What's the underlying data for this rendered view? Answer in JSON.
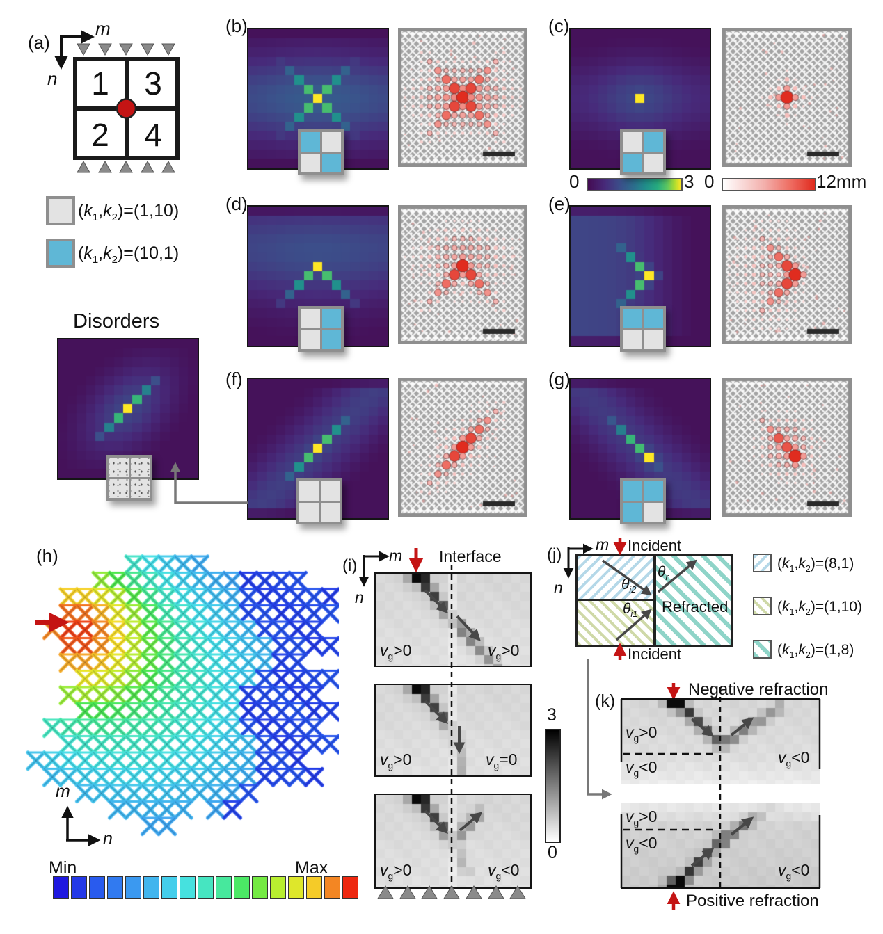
{
  "syms": {
    "open": "(",
    "k": "k",
    "one": "1",
    "two": "2",
    "comma": ",",
    "v": "v",
    "g": "g",
    "theta": "θ"
  },
  "panel_a": {
    "label": "(a)",
    "axis_m": "m",
    "axis_n": "n",
    "quads": [
      "1",
      "3",
      "2",
      "4"
    ]
  },
  "legend_k": {
    "gray_tail": ")=(1,10)",
    "blue_tail": ")=(10,1)"
  },
  "disorders": {
    "title": "Disorders"
  },
  "panel_labels": {
    "a": "(a)",
    "b": "(b)",
    "c": "(c)",
    "d": "(d)",
    "e": "(e)",
    "f": "(f)",
    "g": "(g)",
    "h": "(h)",
    "i": "(i)",
    "j": "(j)",
    "k": "(k)"
  },
  "colorbar_viridis": {
    "min": "0",
    "max": "3"
  },
  "colorbar_disp": {
    "min": "0",
    "max": "12mm"
  },
  "panel_h": {
    "axis_m": "m",
    "axis_n": "n",
    "cbar_min": "Min",
    "cbar_max": "Max"
  },
  "panel_i": {
    "title": "Interface",
    "axis_m": "m",
    "axis_n": "n",
    "rows": [
      {
        "left": ">0",
        "right": ">0"
      },
      {
        "left": ">0",
        "right": "=0"
      },
      {
        "left": ">0",
        "right": "<0"
      }
    ]
  },
  "gray_colorbar": {
    "max": "3",
    "min": "0"
  },
  "panel_j": {
    "axis_m": "m",
    "axis_n": "n",
    "incident_top": "Incident",
    "incident_bottom": "Incident",
    "refracted": "Refracted",
    "theta_subs": {
      "i2": "i2",
      "i1": "i1",
      "r": "r"
    },
    "legend": [
      {
        "tail": ")=(8,1)"
      },
      {
        "tail": ")=(1,10)"
      },
      {
        "tail": ")=(1,8)"
      }
    ]
  },
  "panel_k": {
    "neg_title": "Negative refraction",
    "pos_title": "Positive refraction",
    "neg": {
      "tl": ">0",
      "bl": "<0",
      "right": "<0"
    },
    "pos": {
      "tl": ">0",
      "ml": "<0",
      "br": "<0"
    }
  },
  "insets": {
    "b": [
      "blue",
      "gray",
      "gray",
      "blue"
    ],
    "c": [
      "gray",
      "blue",
      "blue",
      "gray"
    ],
    "d": [
      "gray",
      "blue",
      "gray",
      "blue"
    ],
    "e": [
      "blue",
      "blue",
      "gray",
      "gray"
    ],
    "f": [
      "gray",
      "gray",
      "gray",
      "gray"
    ],
    "g": [
      "blue",
      "blue",
      "blue",
      "gray"
    ],
    "disorders": [
      "speckle",
      "speckle",
      "speckle",
      "speckle"
    ]
  },
  "patterns": {
    "b": "x",
    "c": "point",
    "d": "chevron-up",
    "e": "chevron-right",
    "f": "diagonal",
    "g": "diagonal-skew",
    "disorders": "diagonal-diffuse"
  },
  "colors": {
    "accent_red": "#c41414",
    "inset_blue": "#5fb7d6",
    "inset_gray": "#e3e3e3",
    "hatch_blue": "#b5d8e8",
    "hatch_olive": "#cfd9a8",
    "hatch_teal": "#8fd4c8",
    "viridis_min": "#440d54",
    "viridis_max": "#fde725",
    "disp_red": "#e02c1f"
  }
}
